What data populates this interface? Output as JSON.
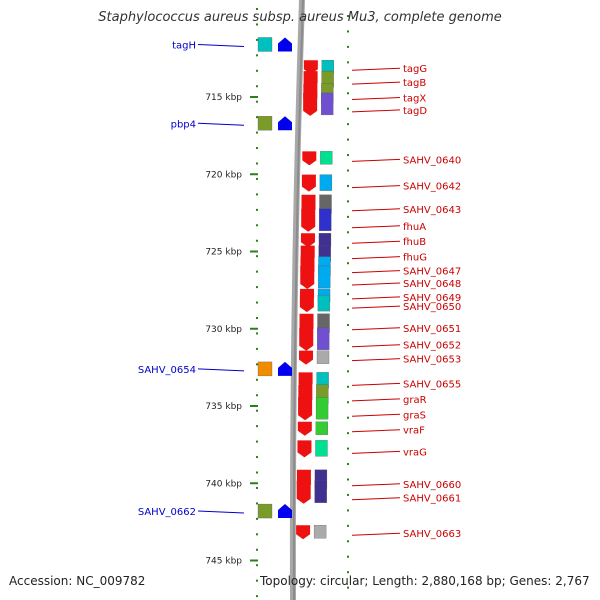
{
  "title": "Staphylococcus aureus subsp. aureus Mu3, complete genome",
  "accession": "Accession: NC_009782",
  "topology": "Topology: circular; Length: 2,880,168 bp; Genes: 2,767",
  "scale_labels": [
    "715 kbp",
    "720 kbp",
    "725 kbp",
    "730 kbp",
    "735 kbp",
    "740 kbp",
    "745 kbp"
  ],
  "colors": {
    "backbone": "#8c8c8c",
    "tick": "#2e7d1f",
    "forward_label": "#0000cc",
    "reverse_label": "#cc0000",
    "forward_gene": "#0000ee",
    "reverse_gene": "#ee1111"
  },
  "forward_genes": [
    {
      "name": "tagH",
      "kbp": 711.6,
      "color": "#00bfbf"
    },
    {
      "name": "pbp4",
      "kbp": 716.7,
      "color": "#7a9a2a"
    },
    {
      "name": "SAHV_0654",
      "kbp": 732.6,
      "color": "#f08c00"
    },
    {
      "name": "SAHV_0662",
      "kbp": 741.8,
      "color": "#7a9a2a"
    }
  ],
  "reverse_genes": [
    {
      "name": "tagG",
      "kbp": 713.2,
      "color": "#00bfbf"
    },
    {
      "name": "tagB",
      "kbp": 714.1,
      "color": "#7a9a2a"
    },
    {
      "name": "tagX",
      "kbp": 715.1,
      "color": "#7a9a2a"
    },
    {
      "name": "tagD",
      "kbp": 715.9,
      "color": "#7050d0"
    },
    {
      "name": "SAHV_0640",
      "kbp": 719.1,
      "color": "#00e090"
    },
    {
      "name": "SAHV_0642",
      "kbp": 720.8,
      "color": "#00aaee"
    },
    {
      "name": "SAHV_0643",
      "kbp": 722.3,
      "color": "#666666"
    },
    {
      "name": "fhuA",
      "kbp": 723.4,
      "color": "#3030cc"
    },
    {
      "name": "fhuB",
      "kbp": 724.4,
      "color": "#403090"
    },
    {
      "name": "fhuG",
      "kbp": 725.4,
      "color": "#403090"
    },
    {
      "name": "SAHV_0647",
      "kbp": 726.3,
      "color": "#00aaee"
    },
    {
      "name": "SAHV_0648",
      "kbp": 727.1,
      "color": "#00aaee"
    },
    {
      "name": "SAHV_0649",
      "kbp": 728.0,
      "color": "#00aaee"
    },
    {
      "name": "SAHV_0650",
      "kbp": 728.6,
      "color": "#00bfbf"
    },
    {
      "name": "SAHV_0651",
      "kbp": 730.0,
      "color": "#666666"
    },
    {
      "name": "SAHV_0652",
      "kbp": 731.1,
      "color": "#7050d0"
    },
    {
      "name": "SAHV_0653",
      "kbp": 732.0,
      "color": "#aaaaaa"
    },
    {
      "name": "SAHV_0655",
      "kbp": 733.6,
      "color": "#00bfbf"
    },
    {
      "name": "graR",
      "kbp": 734.6,
      "color": "#7a9a2a"
    },
    {
      "name": "graS",
      "kbp": 735.6,
      "color": "#33cc33"
    },
    {
      "name": "vraF",
      "kbp": 736.6,
      "color": "#33cc33"
    },
    {
      "name": "vraG",
      "kbp": 738.0,
      "color": "#00e090"
    },
    {
      "name": "SAHV_0660",
      "kbp": 740.1,
      "color": "#403090"
    },
    {
      "name": "SAHV_0661",
      "kbp": 741.0,
      "color": "#403090"
    },
    {
      "name": "SAHV_0663",
      "kbp": 743.3,
      "color": "#aaaaaa"
    }
  ]
}
